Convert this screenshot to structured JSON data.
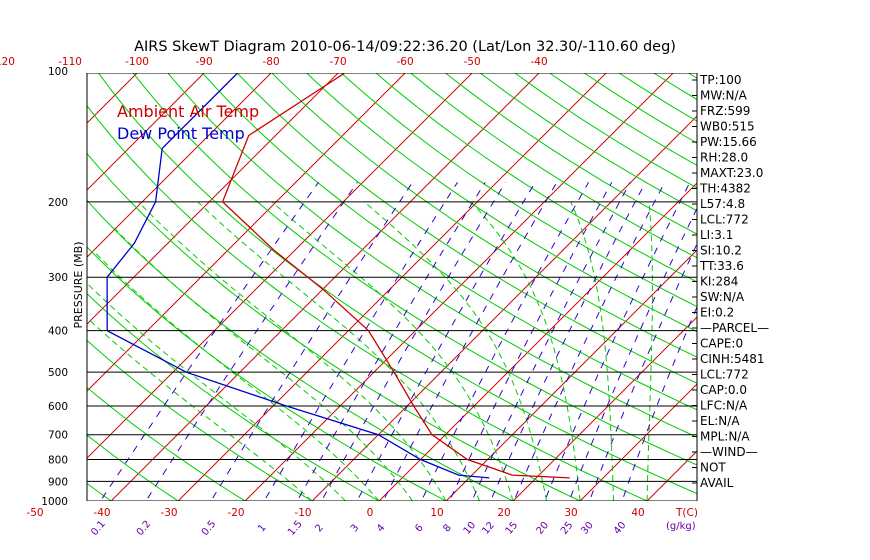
{
  "title": "AIRS SkewT Diagram 2010-06-14/09:22:36.20 (Lat/Lon 32.30/-110.60 deg)",
  "legend": [
    {
      "label": "Ambient Air Temp",
      "color": "#cc0000"
    },
    {
      "label": "Dew Point Temp",
      "color": "#0000cc"
    }
  ],
  "colors": {
    "isotherm": "#cc0000",
    "dry_adiabat": "#00cc00",
    "moist_adiabat": "#00cc00",
    "mixing_ratio": "#3300cc",
    "isobar": "#000000",
    "temp_tick_label": "#cc0000",
    "mixing_tick_label": "#6600aa"
  },
  "chart_data": {
    "type": "line",
    "title": "AIRS SkewT Diagram 2010-06-14/09:22:36.20 (Lat/Lon 32.30/-110.60 deg)",
    "ylabel": "PRESSURE (MB)",
    "xlabel": "T(C)",
    "y_scale": "log",
    "ylim": [
      1000,
      100
    ],
    "pressure_ticks": [
      "100",
      "200",
      "300",
      "400",
      "500",
      "600",
      "700",
      "800",
      "900",
      "1000"
    ],
    "top_temp_ticks": [
      "-120",
      "-110",
      "-100",
      "-90",
      "-80",
      "-70",
      "-60",
      "-50",
      "-40"
    ],
    "bottom_temp_ticks": [
      "-50",
      "-40",
      "-30",
      "-20",
      "-10",
      "0",
      "10",
      "20",
      "30",
      "40"
    ],
    "mixing_ratio_ticks": [
      "0.1",
      "0.2",
      "0.5",
      "1",
      "1.5",
      "2",
      "3",
      "4",
      "6",
      "8",
      "10",
      "12",
      "15",
      "20",
      "25",
      "30",
      "40"
    ],
    "mixing_ratio_unit": "g/kg",
    "series": [
      {
        "name": "Ambient Air Temp",
        "color": "#cc0000",
        "points": [
          {
            "p": 100,
            "t": -69
          },
          {
            "p": 140,
            "t": -74
          },
          {
            "p": 200,
            "t": -68
          },
          {
            "p": 260,
            "t": -53
          },
          {
            "p": 320,
            "t": -40
          },
          {
            "p": 400,
            "t": -27
          },
          {
            "p": 500,
            "t": -17
          },
          {
            "p": 600,
            "t": -9
          },
          {
            "p": 700,
            "t": -2
          },
          {
            "p": 800,
            "t": 7
          },
          {
            "p": 870,
            "t": 16
          },
          {
            "p": 883,
            "t": 25
          }
        ]
      },
      {
        "name": "Dew Point Temp",
        "color": "#0000cc",
        "points": [
          {
            "p": 100,
            "t": -85
          },
          {
            "p": 150,
            "t": -85
          },
          {
            "p": 200,
            "t": -78
          },
          {
            "p": 250,
            "t": -75
          },
          {
            "p": 300,
            "t": -74
          },
          {
            "p": 400,
            "t": -66
          },
          {
            "p": 500,
            "t": -48
          },
          {
            "p": 600,
            "t": -28
          },
          {
            "p": 700,
            "t": -10
          },
          {
            "p": 800,
            "t": 0
          },
          {
            "p": 870,
            "t": 8
          },
          {
            "p": 883,
            "t": 13
          }
        ]
      }
    ]
  },
  "indices": [
    "TP:100",
    "MW:N/A",
    "FRZ:599",
    "WB0:515",
    "PW:15.66",
    "RH:28.0",
    "MAXT:23.0",
    "TH:4382",
    "L57:4.8",
    "LCL:772",
    "LI:3.1",
    "SI:10.2",
    "TT:33.6",
    "KI:284",
    "SW:N/A",
    "EI:0.2",
    "—PARCEL—",
    "CAPE:0",
    "CINH:5481",
    "LCL:772",
    "CAP:0.0",
    "LFC:N/A",
    "EL:N/A",
    "MPL:N/A",
    "—WIND—",
    "NOT",
    "AVAIL"
  ]
}
